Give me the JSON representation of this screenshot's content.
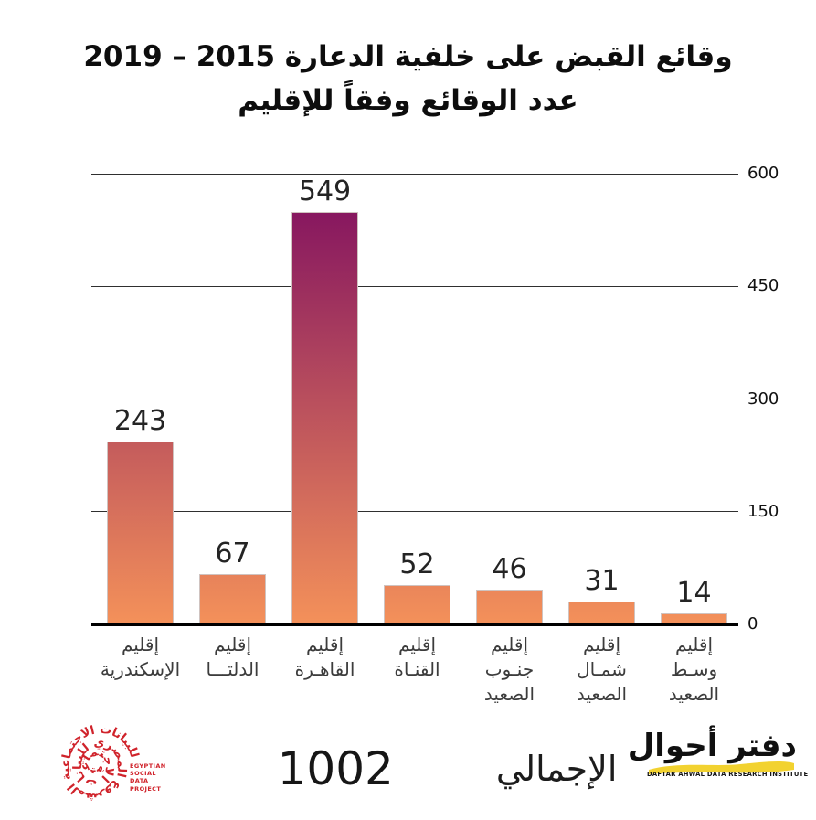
{
  "title": {
    "line1": "وقائع القبض على خلفية الدعارة 2015 – 2019",
    "line2": "عدد الوقائع وفقاً للإقليم"
  },
  "chart_data": {
    "type": "bar",
    "title": "وقائع القبض على خلفية الدعارة 2015 – 2019",
    "subtitle": "عدد الوقائع وفقاً للإقليم",
    "direction": "rtl",
    "categories": [
      "إقليم\nالإسكندرية",
      "إقليم\nالدلتـــا",
      "إقليم\nالقاهـرة",
      "إقليم\nالقنـاة",
      "إقليم\nجنـوب\nالصعيد",
      "إقليم\nشمـال\nالصعيد",
      "إقليم\nوسـط\nالصعيد"
    ],
    "values": [
      243,
      67,
      549,
      52,
      46,
      31,
      14
    ],
    "xlabel": "",
    "ylabel": "",
    "ylim": [
      0,
      600
    ],
    "yticks": [
      0,
      150,
      300,
      450,
      600
    ],
    "yticks_position": "right",
    "grid": true,
    "legend": false,
    "bar_gradient": {
      "bottom_color": "#f4915a",
      "top_color": "#7d0c60"
    },
    "gridline_color": "#2f2f2f",
    "baseline_color": "#000000"
  },
  "total": {
    "label": "الإجمالي",
    "value": "1002"
  },
  "footer": {
    "esdp_logo": {
      "arabic_text": "المشروع المصري للبيانات الاجتماعية",
      "caption": "EGYPTIAN\nSOCIAL\nDATA\nPROJECT",
      "color": "#d0232b"
    },
    "daftar_logo": {
      "arabic_name": "دفتر أحوال",
      "caption": "DAFTAR AHWAL DATA RESEARCH INSTITUTE",
      "accent_color": "#f2d230"
    }
  }
}
